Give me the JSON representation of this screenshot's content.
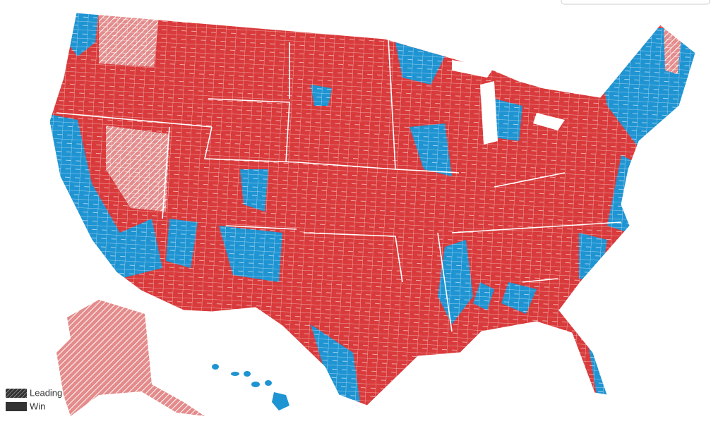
{
  "legend": {
    "items": [
      {
        "label": "Leading"
      },
      {
        "label": "Win"
      }
    ]
  }
}
